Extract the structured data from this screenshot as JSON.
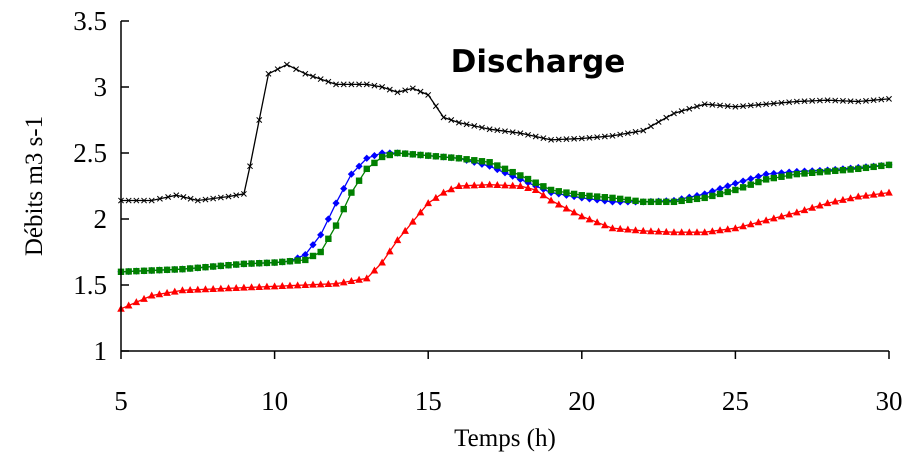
{
  "chart_data": {
    "type": "line",
    "title": "Discharge",
    "xlabel": "Temps (h)",
    "ylabel": "Débits m3 s-1",
    "xlim": [
      5,
      30
    ],
    "ylim": [
      1,
      3.5
    ],
    "xticks": [
      5,
      10,
      15,
      20,
      25,
      30
    ],
    "yticks": [
      1,
      1.5,
      2,
      2.5,
      3,
      3.5
    ],
    "xtick_labels": [
      "5",
      "10",
      "15",
      "20",
      "25",
      "30"
    ],
    "ytick_labels": [
      "1",
      "1.5",
      "2",
      "2.5",
      "3",
      "3.5"
    ],
    "grid": false,
    "legend": "none",
    "series": [
      {
        "color": "#000000",
        "marker": "x",
        "points": [
          [
            5,
            2.14
          ],
          [
            6,
            2.14
          ],
          [
            6.8,
            2.18
          ],
          [
            7.5,
            2.14
          ],
          [
            8.5,
            2.17
          ],
          [
            9,
            2.19
          ],
          [
            9.2,
            2.4
          ],
          [
            9.5,
            2.75
          ],
          [
            9.8,
            3.1
          ],
          [
            10.4,
            3.17
          ],
          [
            11,
            3.1
          ],
          [
            12,
            3.02
          ],
          [
            13,
            3.02
          ],
          [
            13.5,
            3.0
          ],
          [
            14,
            2.96
          ],
          [
            14.5,
            2.99
          ],
          [
            15,
            2.94
          ],
          [
            15.5,
            2.77
          ],
          [
            16,
            2.73
          ],
          [
            17,
            2.68
          ],
          [
            18,
            2.65
          ],
          [
            19,
            2.6
          ],
          [
            20,
            2.61
          ],
          [
            21,
            2.63
          ],
          [
            22,
            2.67
          ],
          [
            23,
            2.8
          ],
          [
            24,
            2.87
          ],
          [
            25,
            2.85
          ],
          [
            26,
            2.87
          ],
          [
            27,
            2.89
          ],
          [
            28,
            2.9
          ],
          [
            29,
            2.89
          ],
          [
            30,
            2.91
          ]
        ]
      },
      {
        "color": "#0000ff",
        "marker": "diamond",
        "points": [
          [
            5,
            1.6
          ],
          [
            6,
            1.61
          ],
          [
            7,
            1.62
          ],
          [
            8,
            1.64
          ],
          [
            9,
            1.66
          ],
          [
            10,
            1.67
          ],
          [
            10.5,
            1.68
          ],
          [
            11,
            1.73
          ],
          [
            11.5,
            1.88
          ],
          [
            12,
            2.12
          ],
          [
            12.5,
            2.34
          ],
          [
            13,
            2.46
          ],
          [
            13.5,
            2.5
          ],
          [
            14,
            2.5
          ],
          [
            15,
            2.48
          ],
          [
            16,
            2.46
          ],
          [
            17,
            2.4
          ],
          [
            18,
            2.3
          ],
          [
            19,
            2.2
          ],
          [
            20,
            2.16
          ],
          [
            21,
            2.13
          ],
          [
            22,
            2.13
          ],
          [
            23,
            2.14
          ],
          [
            24,
            2.19
          ],
          [
            25,
            2.27
          ],
          [
            26,
            2.34
          ],
          [
            27,
            2.36
          ],
          [
            28,
            2.37
          ],
          [
            29,
            2.39
          ],
          [
            30,
            2.41
          ]
        ]
      },
      {
        "color": "#008000",
        "marker": "square",
        "points": [
          [
            5,
            1.6
          ],
          [
            6,
            1.61
          ],
          [
            7,
            1.62
          ],
          [
            8,
            1.64
          ],
          [
            9,
            1.66
          ],
          [
            10,
            1.67
          ],
          [
            11,
            1.69
          ],
          [
            11.5,
            1.75
          ],
          [
            12,
            1.95
          ],
          [
            12.5,
            2.2
          ],
          [
            13,
            2.38
          ],
          [
            13.5,
            2.47
          ],
          [
            14,
            2.5
          ],
          [
            15,
            2.48
          ],
          [
            16,
            2.46
          ],
          [
            17,
            2.43
          ],
          [
            18,
            2.33
          ],
          [
            19,
            2.22
          ],
          [
            20,
            2.18
          ],
          [
            21,
            2.16
          ],
          [
            22,
            2.13
          ],
          [
            23,
            2.13
          ],
          [
            24,
            2.16
          ],
          [
            25,
            2.22
          ],
          [
            26,
            2.3
          ],
          [
            27,
            2.34
          ],
          [
            28,
            2.36
          ],
          [
            29,
            2.38
          ],
          [
            30,
            2.41
          ]
        ]
      },
      {
        "color": "#ff0000",
        "marker": "triangle",
        "points": [
          [
            5,
            1.32
          ],
          [
            5.5,
            1.37
          ],
          [
            6,
            1.42
          ],
          [
            7,
            1.46
          ],
          [
            8,
            1.47
          ],
          [
            9,
            1.48
          ],
          [
            10,
            1.49
          ],
          [
            11,
            1.5
          ],
          [
            12,
            1.51
          ],
          [
            13,
            1.55
          ],
          [
            13.5,
            1.67
          ],
          [
            14,
            1.84
          ],
          [
            14.5,
            1.98
          ],
          [
            15,
            2.12
          ],
          [
            15.5,
            2.2
          ],
          [
            16,
            2.25
          ],
          [
            17,
            2.26
          ],
          [
            18,
            2.25
          ],
          [
            18.5,
            2.22
          ],
          [
            19,
            2.14
          ],
          [
            20,
            2.02
          ],
          [
            21,
            1.93
          ],
          [
            22,
            1.91
          ],
          [
            23,
            1.9
          ],
          [
            24,
            1.9
          ],
          [
            25,
            1.93
          ],
          [
            26,
            1.99
          ],
          [
            27,
            2.05
          ],
          [
            28,
            2.12
          ],
          [
            29,
            2.17
          ],
          [
            30,
            2.2
          ]
        ]
      }
    ]
  }
}
